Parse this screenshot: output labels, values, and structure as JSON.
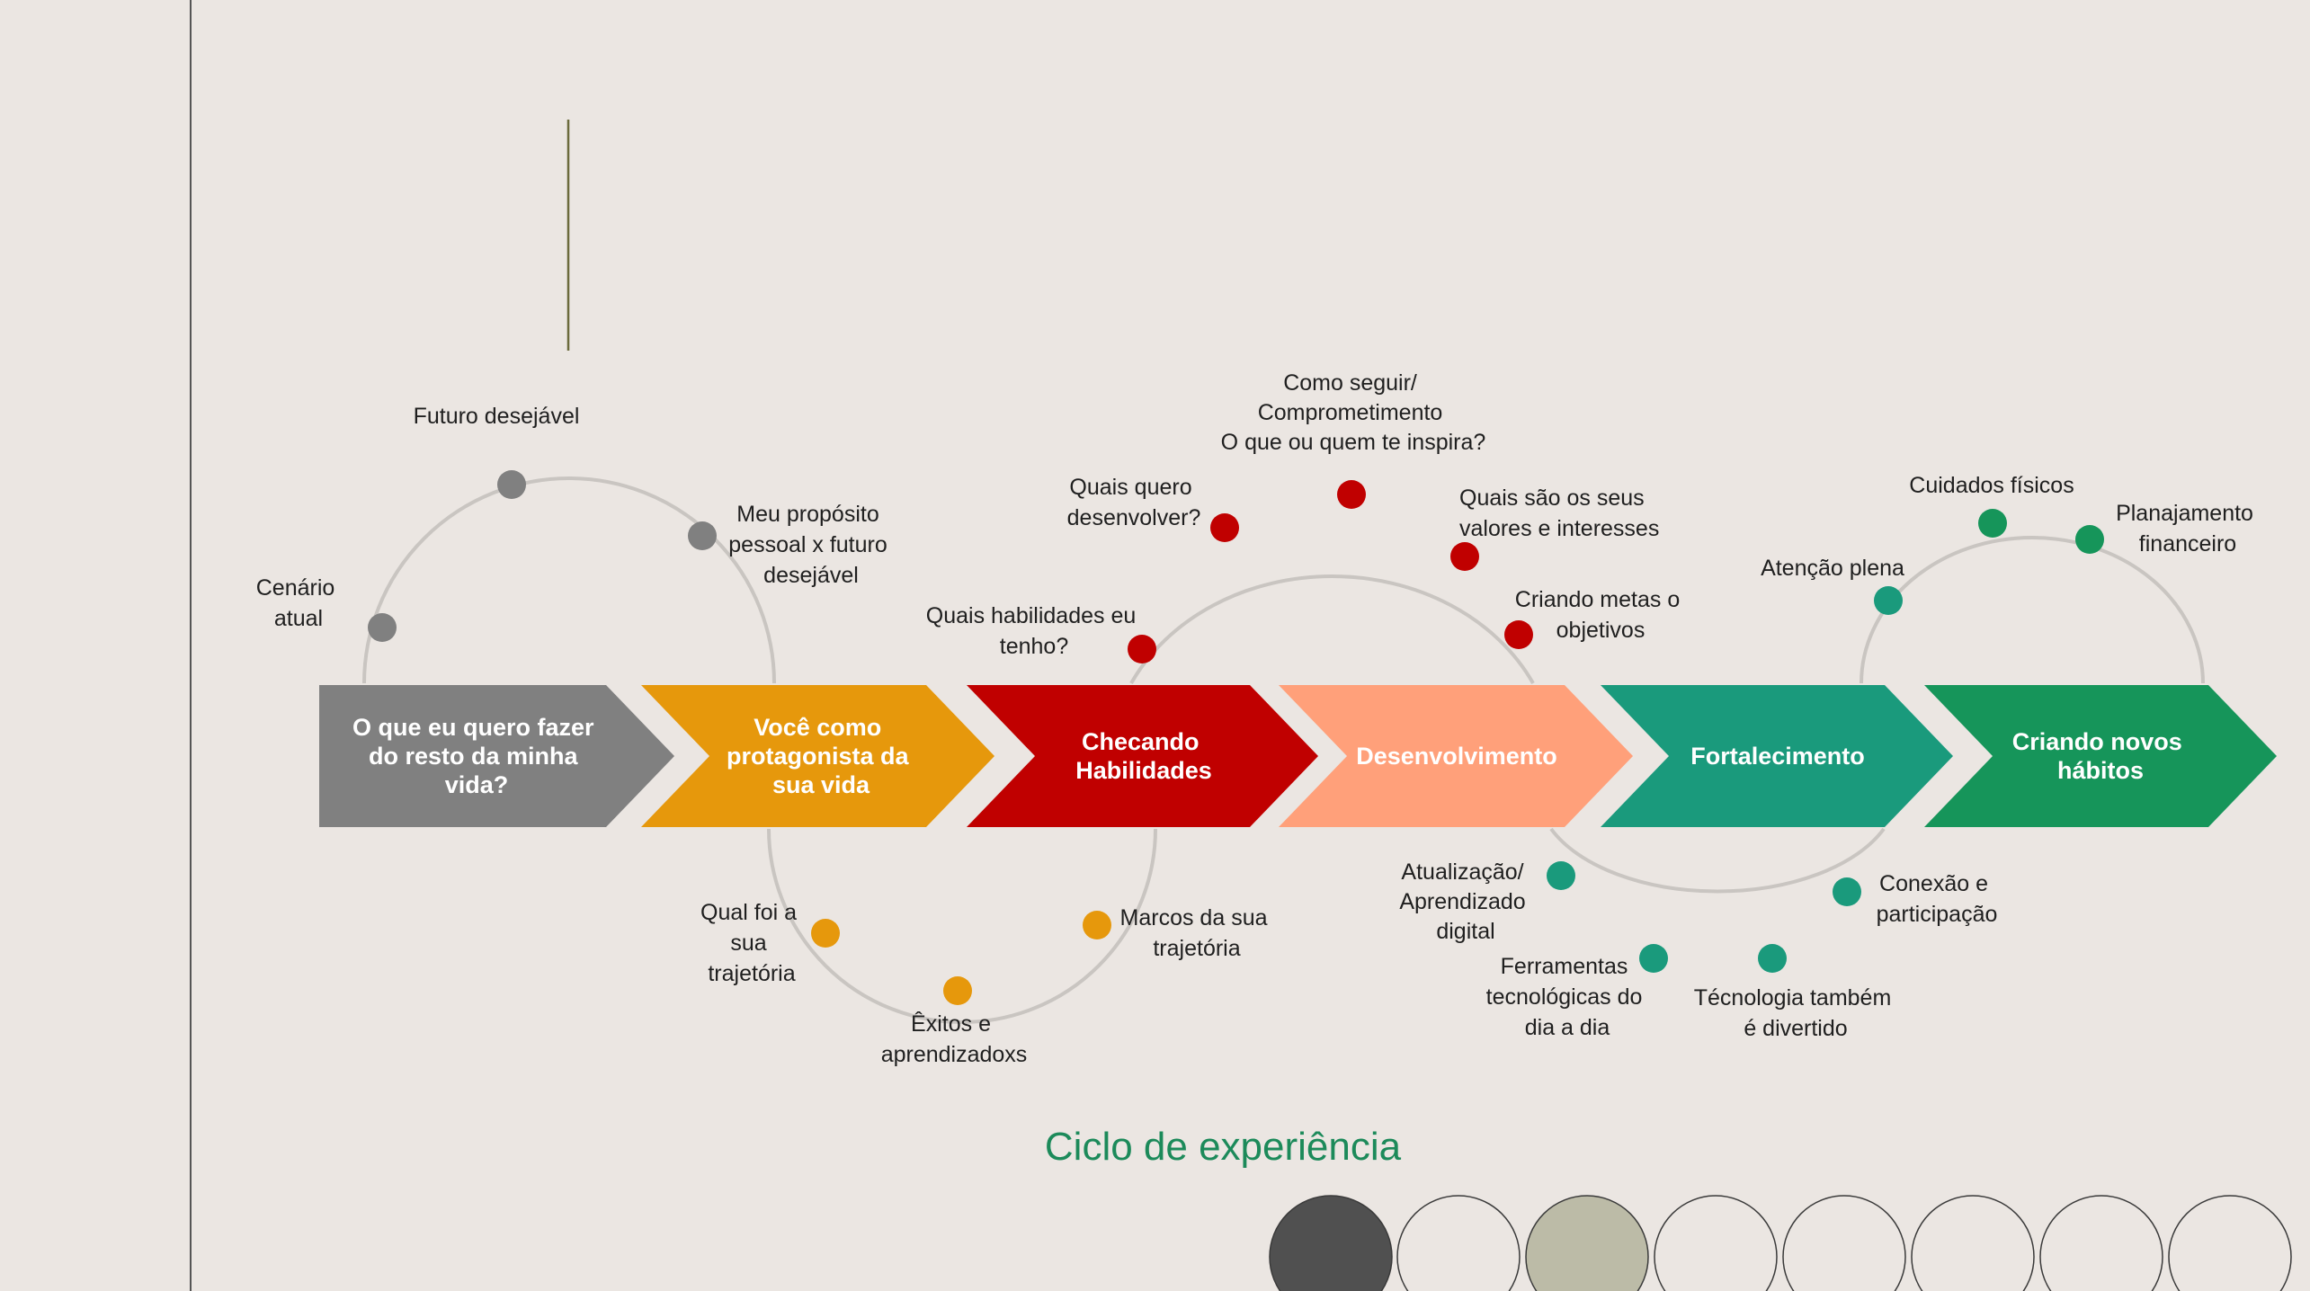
{
  "title": "Ciclo de experiência",
  "colors": {
    "background": "#ebe6e2",
    "gray": "#808080",
    "orange": "#e6980c",
    "red": "#c00000",
    "salmon": "#ffa07a",
    "teal": "#1a9a7c",
    "green": "#16955a",
    "arc": "#c9c5c1",
    "title": "#1c8a5a"
  },
  "stages": [
    {
      "lines": [
        "O que eu quero fazer",
        "do resto da minha",
        "vida?"
      ],
      "color": "#808080"
    },
    {
      "lines": [
        "Você como",
        "protagonista da",
        "sua vida"
      ],
      "color": "#e6980c"
    },
    {
      "lines": [
        "Checando",
        "Habilidades"
      ],
      "color": "#c00000"
    },
    {
      "lines": [
        "Desenvolvimento"
      ],
      "color": "#ffa07a"
    },
    {
      "lines": [
        "Fortalecimento"
      ],
      "color": "#1a9a7c"
    },
    {
      "lines": [
        "Criando novos",
        "hábitos"
      ],
      "color": "#16955a"
    }
  ],
  "labels": {
    "gray_1": [
      "Cenário",
      "atual"
    ],
    "gray_2": [
      "Futuro desejável"
    ],
    "gray_3": [
      "Meu propósito",
      "pessoal x futuro",
      "desejável"
    ],
    "orange_1": [
      "Qual foi a",
      "sua",
      "trajetória"
    ],
    "orange_2": [
      "Êxitos e",
      "aprendizadoxs"
    ],
    "orange_3": [
      "Marcos da sua",
      "trajetória"
    ],
    "red_1": [
      "Quais habilidades eu",
      "tenho?"
    ],
    "red_2": [
      "Quais quero",
      "desenvolver?"
    ],
    "red_3": [
      "Como seguir/",
      "Comprometimento",
      "O que ou quem te inspira?"
    ],
    "red_4": [
      "Quais são os seus",
      "valores e interesses"
    ],
    "red_5": [
      "Criando metas o",
      "objetivos"
    ],
    "teal_1": [
      "Atualização/",
      "Aprendizado",
      "digital"
    ],
    "teal_2": [
      "Ferramentas",
      "tecnológicas do",
      "dia a dia"
    ],
    "teal_3": [
      "Técnologia também",
      "é divertido"
    ],
    "teal_4": [
      "Conexão e",
      "participação"
    ],
    "green_1": [
      "Atenção plena"
    ],
    "green_2": [
      "Cuidados físicos"
    ],
    "green_3": [
      "Planajamento",
      "financeiro"
    ]
  },
  "decor_circles": [
    {
      "fill": "#505050"
    },
    {
      "fill": "none"
    },
    {
      "fill": "#bcbba7"
    },
    {
      "fill": "none"
    },
    {
      "fill": "none"
    },
    {
      "fill": "none"
    },
    {
      "fill": "none"
    },
    {
      "fill": "none"
    }
  ]
}
